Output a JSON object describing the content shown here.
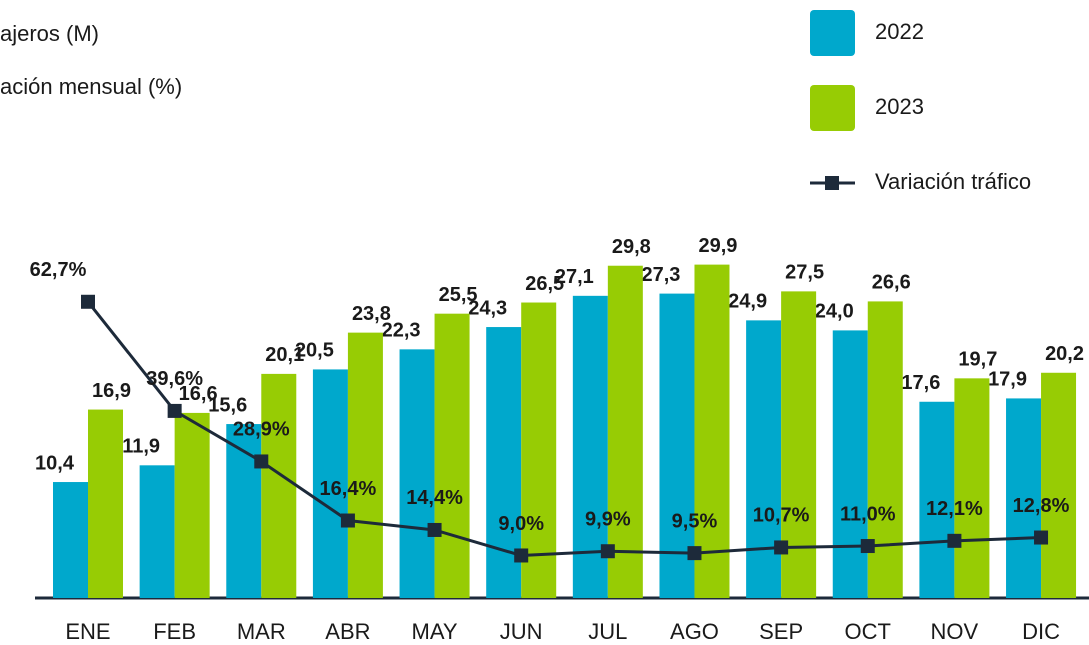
{
  "chart_data": {
    "type": "bar",
    "y_label": "ajeros (M)",
    "y2_label": "ación mensual (%)",
    "categories": [
      "ENE",
      "FEB",
      "MAR",
      "ABR",
      "MAY",
      "JUN",
      "JUL",
      "AGO",
      "SEP",
      "OCT",
      "NOV",
      "DIC"
    ],
    "ylim": [
      0,
      50
    ],
    "y2lim": [
      0,
      118
    ],
    "series": [
      {
        "name": "2022",
        "color": "#00a8cc",
        "values": [
          10.4,
          11.9,
          15.6,
          20.5,
          22.3,
          24.3,
          27.1,
          27.3,
          24.9,
          24.0,
          17.6,
          17.9
        ],
        "value_labels": [
          "10,4",
          "11,9",
          "15,6",
          "20,5",
          "22,3",
          "24,3",
          "27,1",
          "27,3",
          "24,9",
          "24,0",
          "17,6",
          "17,9"
        ]
      },
      {
        "name": "2023",
        "color": "#97cc04",
        "values": [
          16.9,
          16.6,
          20.1,
          23.8,
          25.5,
          26.5,
          29.8,
          29.9,
          27.5,
          26.6,
          19.7,
          20.2
        ],
        "value_labels": [
          "16,9",
          "16,6",
          "20,1",
          "23,8",
          "25,5",
          "26,5",
          "29,8",
          "29,9",
          "27,5",
          "26,6",
          "19,7",
          "20,2"
        ]
      },
      {
        "name": "Variación tráfico",
        "type": "line",
        "axis": "y2",
        "color": "#1d2a3a",
        "values": [
          62.7,
          39.6,
          28.9,
          16.4,
          14.4,
          9.0,
          9.9,
          9.5,
          10.7,
          11.0,
          12.1,
          12.8
        ],
        "value_labels": [
          "62,7%",
          "39,6%",
          "28,9%",
          "16,4%",
          "14,4%",
          "9,0%",
          "9,9%",
          "9,5%",
          "10,7%",
          "11,0%",
          "12,1%",
          "12,8%"
        ]
      }
    ]
  }
}
